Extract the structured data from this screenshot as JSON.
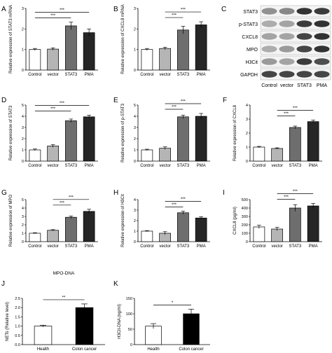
{
  "chart_data": [
    {
      "id": "A",
      "type": "bar",
      "categories": [
        "Control",
        "vector",
        "STAT3",
        "PMA"
      ],
      "values": [
        1.0,
        1.02,
        2.15,
        1.82
      ],
      "errors": [
        0.05,
        0.06,
        0.18,
        0.18
      ],
      "ylabel": "Relative expression of STAT3 mRNA",
      "ylim": [
        0,
        3
      ],
      "yticks": [
        "0",
        "1",
        "2",
        "3"
      ],
      "bar_colors": [
        "#ffffff",
        "#b5b5b5",
        "#6e6e6e",
        "#262626"
      ],
      "significance": [
        {
          "from": 2,
          "to": 0,
          "text": "***"
        },
        {
          "from": 3,
          "to": 0,
          "text": "***"
        }
      ]
    },
    {
      "id": "B",
      "type": "bar",
      "categories": [
        "Control",
        "vector",
        "STAT3",
        "PMA"
      ],
      "values": [
        1.0,
        1.05,
        1.95,
        2.2
      ],
      "errors": [
        0.05,
        0.06,
        0.18,
        0.15
      ],
      "ylabel": "Relative expression of CXCL8 mRNA",
      "ylim": [
        0,
        3
      ],
      "yticks": [
        "0",
        "1",
        "2",
        "3"
      ],
      "bar_colors": [
        "#ffffff",
        "#b5b5b5",
        "#6e6e6e",
        "#262626"
      ],
      "significance": [
        {
          "from": 2,
          "to": 1,
          "text": "***"
        },
        {
          "from": 3,
          "to": 1,
          "text": "***"
        }
      ]
    },
    {
      "id": "D",
      "type": "bar",
      "categories": [
        "Control",
        "vector",
        "STAT3",
        "PMA"
      ],
      "values": [
        1.0,
        1.35,
        3.6,
        3.95
      ],
      "errors": [
        0.08,
        0.12,
        0.15,
        0.15
      ],
      "ylabel": "Relative expression of STAT3",
      "ylim": [
        0,
        5
      ],
      "yticks": [
        "0",
        "1",
        "2",
        "3",
        "4",
        "5"
      ],
      "bar_colors": [
        "#ffffff",
        "#b5b5b5",
        "#6e6e6e",
        "#262626"
      ],
      "significance": [
        {
          "from": 2,
          "to": 0,
          "text": "***"
        },
        {
          "from": 3,
          "to": 0,
          "text": "***"
        }
      ]
    },
    {
      "id": "E",
      "type": "bar",
      "categories": [
        "Control",
        "vector",
        "STAT3",
        "PMA"
      ],
      "values": [
        1.0,
        1.15,
        3.95,
        4.0
      ],
      "errors": [
        0.06,
        0.12,
        0.15,
        0.25
      ],
      "ylabel": "Relative expression of p-STAT3",
      "ylim": [
        0,
        5
      ],
      "yticks": [
        "0",
        "1",
        "2",
        "3",
        "4",
        "5"
      ],
      "bar_colors": [
        "#ffffff",
        "#b5b5b5",
        "#6e6e6e",
        "#262626"
      ],
      "significance": [
        {
          "from": 2,
          "to": 1,
          "text": "***"
        },
        {
          "from": 3,
          "to": 1,
          "text": "***"
        }
      ]
    },
    {
      "id": "F",
      "type": "bar",
      "categories": [
        "Control",
        "vector",
        "STAT3",
        "PMA"
      ],
      "values": [
        1.0,
        0.9,
        2.4,
        2.82
      ],
      "errors": [
        0.05,
        0.05,
        0.1,
        0.1
      ],
      "ylabel": "Relative expression of CXCL8",
      "ylim": [
        0,
        4
      ],
      "yticks": [
        "0",
        "1",
        "2",
        "3",
        "4"
      ],
      "bar_colors": [
        "#ffffff",
        "#b5b5b5",
        "#6e6e6e",
        "#262626"
      ],
      "significance": [
        {
          "from": 2,
          "to": 1,
          "text": "***"
        },
        {
          "from": 3,
          "to": 1,
          "text": "***"
        }
      ]
    },
    {
      "id": "G",
      "type": "bar",
      "categories": [
        "Control",
        "vector",
        "STAT3",
        "PMA"
      ],
      "values": [
        1.0,
        1.35,
        2.9,
        3.6
      ],
      "errors": [
        0.06,
        0.08,
        0.15,
        0.25
      ],
      "ylabel": "Relative expression of MPO",
      "ylim": [
        0,
        5
      ],
      "yticks": [
        "0",
        "1",
        "2",
        "3",
        "4",
        "5"
      ],
      "bar_colors": [
        "#ffffff",
        "#b5b5b5",
        "#6e6e6e",
        "#262626"
      ],
      "significance": [
        {
          "from": 2,
          "to": 1,
          "text": "***"
        },
        {
          "from": 3,
          "to": 1,
          "text": "***"
        }
      ]
    },
    {
      "id": "H",
      "type": "bar",
      "categories": [
        "Control",
        "vector",
        "STAT3",
        "PMA"
      ],
      "values": [
        1.0,
        0.8,
        2.75,
        2.25
      ],
      "errors": [
        0.05,
        0.15,
        0.15,
        0.12
      ],
      "ylabel": "Relative expression of H3Cit",
      "ylim": [
        0,
        4
      ],
      "yticks": [
        "0",
        "1",
        "2",
        "3",
        "4"
      ],
      "bar_colors": [
        "#ffffff",
        "#b5b5b5",
        "#6e6e6e",
        "#262626"
      ],
      "significance": [
        {
          "from": 2,
          "to": 1,
          "text": "***"
        },
        {
          "from": 3,
          "to": 1,
          "text": "***"
        }
      ]
    },
    {
      "id": "I",
      "type": "bar",
      "categories": [
        "Control",
        "vector",
        "STAT3",
        "PMA"
      ],
      "values": [
        175,
        150,
        400,
        425
      ],
      "errors": [
        20,
        20,
        40,
        30
      ],
      "ylabel": "CXCL8 (pg/ml)",
      "ylim": [
        0,
        500
      ],
      "yticks": [
        "0",
        "100",
        "200",
        "300",
        "400",
        "500"
      ],
      "bar_colors": [
        "#ffffff",
        "#b5b5b5",
        "#6e6e6e",
        "#262626"
      ],
      "significance": [
        {
          "from": 2,
          "to": 1,
          "text": "***"
        },
        {
          "from": 3,
          "to": 1,
          "text": "***"
        }
      ]
    },
    {
      "id": "J",
      "type": "bar",
      "title": "MPO-DNA",
      "categories": [
        "Health",
        "Colon cancer"
      ],
      "values": [
        1.0,
        2.0
      ],
      "errors": [
        0.05,
        0.2
      ],
      "ylabel": "NETs (Relative level)",
      "ylim": [
        0,
        2.5
      ],
      "yticks": [
        "0.0",
        "0.5",
        "1.0",
        "1.5",
        "2.0",
        "2.5"
      ],
      "bar_colors": [
        "#ffffff",
        "#000000"
      ],
      "significance": [
        {
          "from": 1,
          "to": 0,
          "text": "**"
        }
      ]
    },
    {
      "id": "K",
      "type": "bar",
      "categories": [
        "Health",
        "Colon cancer"
      ],
      "values": [
        60,
        100
      ],
      "errors": [
        8,
        15
      ],
      "ylabel": "H3Cit-DNA (ng/ml)",
      "ylim": [
        0,
        150
      ],
      "yticks": [
        "0",
        "50",
        "100",
        "150"
      ],
      "bar_colors": [
        "#ffffff",
        "#000000"
      ],
      "significance": [
        {
          "from": 1,
          "to": 0,
          "text": "*"
        }
      ]
    }
  ],
  "blot": {
    "id": "C",
    "rows": [
      "STAT3",
      "p-STAT3",
      "CXCL8",
      "MPO",
      "H3Cit",
      "GAPDH"
    ],
    "columns": [
      "Control",
      "vector",
      "STAT3",
      "PMA"
    ],
    "intensities": [
      [
        0.45,
        0.5,
        0.95,
        0.9
      ],
      [
        0.3,
        0.35,
        0.9,
        0.95
      ],
      [
        0.35,
        0.35,
        0.85,
        0.95
      ],
      [
        0.3,
        0.4,
        0.85,
        0.95
      ],
      [
        0.4,
        0.35,
        0.9,
        0.8
      ],
      [
        0.85,
        0.85,
        0.85,
        0.85
      ]
    ]
  }
}
